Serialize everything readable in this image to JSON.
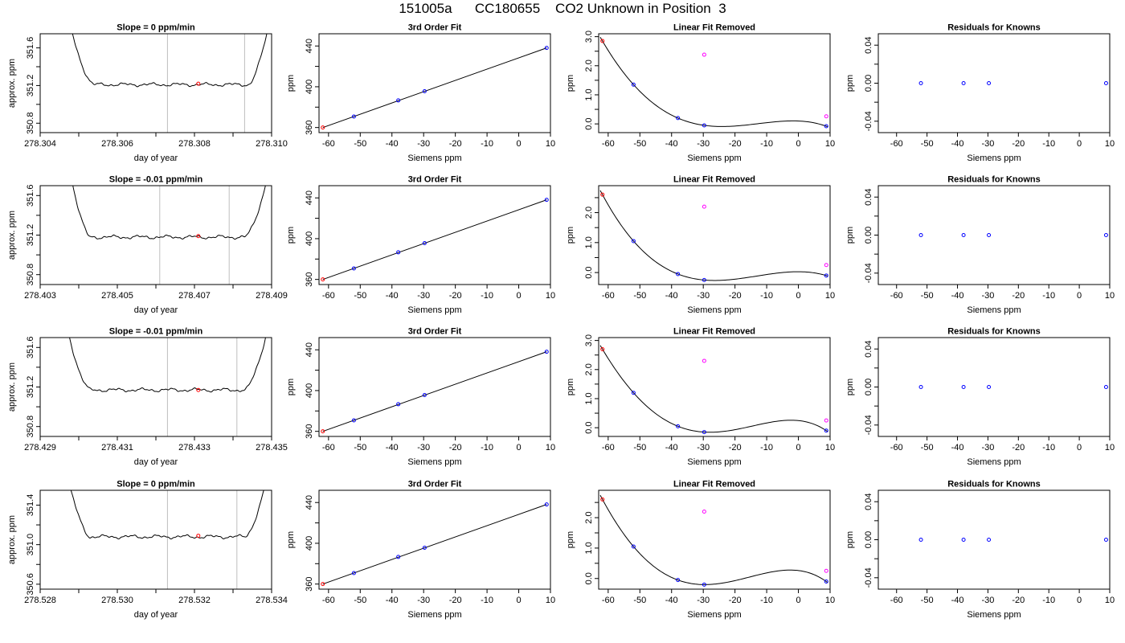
{
  "title": "151005a      CC180655    CO2 Unknown in Position  3",
  "colors": {
    "axis": "#000000",
    "line": "#000000",
    "vline": "#bebebe",
    "red": "#ff0000",
    "blue": "#0000ff",
    "magenta": "#ff00ff"
  },
  "chart_data": [
    {
      "row": 1,
      "col": 1,
      "type": "line",
      "title": "Slope =  0  ppm/min",
      "xlabel": "day of year",
      "ylabel": "approx. ppm",
      "xlim": [
        278.304,
        278.31
      ],
      "ylim": [
        350.7,
        351.75
      ],
      "xticks": [
        278.304,
        278.306,
        278.308,
        278.31
      ],
      "xticklabels": [
        "278.304",
        "278.306",
        "278.308",
        "278.310"
      ],
      "xminor": [
        278.305,
        278.307,
        278.309
      ],
      "yticks": [
        350.8,
        351.2,
        351.6
      ],
      "yticklabels": [
        "350.8",
        "351.2",
        "351.6"
      ],
      "yminor": [
        351.0,
        351.4
      ],
      "trace": {
        "x_start": 278.3048,
        "x_end": 278.3099,
        "flat_start": 278.3054,
        "flat_end": 278.3094,
        "level": 351.21,
        "tail_above": 351.8
      },
      "vlines": [
        278.3073,
        278.3093
      ],
      "marker": {
        "x": 278.3081,
        "y": 351.22
      }
    },
    {
      "row": 1,
      "col": 2,
      "type": "scatter",
      "title": "3rd Order Fit",
      "xlabel": "Siemens ppm",
      "ylabel": "ppm",
      "xlim": [
        -63,
        10
      ],
      "ylim": [
        355,
        452
      ],
      "xticks": [
        -60,
        -50,
        -40,
        -30,
        -20,
        -10,
        0,
        10
      ],
      "yticks": [
        360,
        400,
        440
      ],
      "yticklabels": [
        "360",
        "400",
        "440"
      ],
      "yminor": [
        380,
        420
      ],
      "points": [
        {
          "x": -61.8,
          "y": 360.0,
          "c": "red"
        },
        {
          "x": -52.0,
          "y": 370.8,
          "c": "blue"
        },
        {
          "x": -38.0,
          "y": 386.6,
          "c": "blue"
        },
        {
          "x": -29.7,
          "y": 395.6,
          "c": "blue"
        },
        {
          "x": 8.8,
          "y": 438.1,
          "c": "blue"
        }
      ],
      "fit": {
        "kind": "line"
      }
    },
    {
      "row": 1,
      "col": 3,
      "type": "scatter",
      "title": "Linear Fit Removed",
      "xlabel": "Siemens ppm",
      "ylabel": "ppm",
      "xlim": [
        -63,
        10
      ],
      "ylim": [
        -0.3,
        3.1
      ],
      "xticks": [
        -60,
        -50,
        -40,
        -30,
        -20,
        -10,
        0,
        10
      ],
      "yticks": [
        0.0,
        1.0,
        2.0,
        3.0
      ],
      "yticklabels": [
        "0.0",
        "1.0",
        "2.0",
        "3.0"
      ],
      "yminor": [
        0.5,
        1.5,
        2.5
      ],
      "points": [
        {
          "x": -61.8,
          "y": 2.85,
          "c": "red"
        },
        {
          "x": -52.0,
          "y": 1.35,
          "c": "blue"
        },
        {
          "x": -38.0,
          "y": 0.2,
          "c": "blue"
        },
        {
          "x": -29.7,
          "y": -0.05,
          "c": "blue"
        },
        {
          "x": 8.8,
          "y": -0.08,
          "c": "blue"
        },
        {
          "x": -29.7,
          "y": 2.38,
          "c": "magenta"
        },
        {
          "x": 8.8,
          "y": 0.26,
          "c": "magenta"
        }
      ],
      "fit": {
        "kind": "cubic",
        "x_from": -62.5,
        "x_to": 9.2
      }
    },
    {
      "row": 1,
      "col": 4,
      "type": "scatter",
      "title": "Residuals for Knowns",
      "xlabel": "Siemens ppm",
      "ylabel": "ppm",
      "xlim": [
        -66,
        10
      ],
      "ylim": [
        -0.052,
        0.052
      ],
      "xticks": [
        -60,
        -50,
        -40,
        -30,
        -20,
        -10,
        0,
        10
      ],
      "yticks": [
        -0.04,
        0.0,
        0.04
      ],
      "yticklabels": [
        "-0.04",
        "0.00",
        "0.04"
      ],
      "yminor": [
        -0.02,
        0.02
      ],
      "points": [
        {
          "x": -52.0,
          "y": 0,
          "c": "blue"
        },
        {
          "x": -38.0,
          "y": 0,
          "c": "blue"
        },
        {
          "x": -29.7,
          "y": 0,
          "c": "blue"
        },
        {
          "x": 8.8,
          "y": 0,
          "c": "blue"
        }
      ],
      "fit": null
    },
    {
      "row": 2,
      "col": 1,
      "type": "line",
      "title": "Slope =  -0.01  ppm/min",
      "xlabel": "day of year",
      "ylabel": "approx. ppm",
      "xlim": [
        278.403,
        278.409
      ],
      "ylim": [
        350.7,
        351.7
      ],
      "xticks": [
        278.403,
        278.405,
        278.407,
        278.409
      ],
      "xticklabels": [
        "278.403",
        "278.405",
        "278.407",
        "278.409"
      ],
      "xminor": [
        278.404,
        278.406,
        278.408
      ],
      "yticks": [
        350.8,
        351.2,
        351.6
      ],
      "yticklabels": [
        "350.8",
        "351.2",
        "351.6"
      ],
      "yminor": [
        351.0,
        351.4
      ],
      "trace": {
        "x_start": 278.4038,
        "x_end": 278.4089,
        "flat_start": 278.4043,
        "flat_end": 278.4083,
        "level": 351.18,
        "tail_above": 351.8
      },
      "vlines": [
        278.4061,
        278.4079
      ],
      "marker": {
        "x": 278.4071,
        "y": 351.19
      }
    },
    {
      "row": 2,
      "col": 2,
      "type": "scatter",
      "title": "3rd Order Fit",
      "xlabel": "Siemens ppm",
      "ylabel": "ppm",
      "xlim": [
        -63,
        10
      ],
      "ylim": [
        355,
        452
      ],
      "xticks": [
        -60,
        -50,
        -40,
        -30,
        -20,
        -10,
        0,
        10
      ],
      "yticks": [
        360,
        400,
        440
      ],
      "yticklabels": [
        "360",
        "400",
        "440"
      ],
      "yminor": [
        380,
        420
      ],
      "points": [
        {
          "x": -61.8,
          "y": 360.0,
          "c": "red"
        },
        {
          "x": -52.0,
          "y": 370.8,
          "c": "blue"
        },
        {
          "x": -38.0,
          "y": 386.6,
          "c": "blue"
        },
        {
          "x": -29.7,
          "y": 395.6,
          "c": "blue"
        },
        {
          "x": 8.8,
          "y": 438.1,
          "c": "blue"
        }
      ],
      "fit": {
        "kind": "line"
      }
    },
    {
      "row": 2,
      "col": 3,
      "type": "scatter",
      "title": "Linear Fit Removed",
      "xlabel": "Siemens ppm",
      "ylabel": "ppm",
      "xlim": [
        -63,
        10
      ],
      "ylim": [
        -0.4,
        2.9
      ],
      "xticks": [
        -60,
        -50,
        -40,
        -30,
        -20,
        -10,
        0,
        10
      ],
      "yticks": [
        0.0,
        1.0,
        2.0
      ],
      "yticklabels": [
        "0.0",
        "1.0",
        "2.0"
      ],
      "yminor": [
        0.5,
        1.5,
        2.5
      ],
      "points": [
        {
          "x": -61.8,
          "y": 2.6,
          "c": "red"
        },
        {
          "x": -52.0,
          "y": 1.05,
          "c": "blue"
        },
        {
          "x": -38.0,
          "y": -0.05,
          "c": "blue"
        },
        {
          "x": -29.7,
          "y": -0.25,
          "c": "blue"
        },
        {
          "x": 8.8,
          "y": -0.1,
          "c": "blue"
        },
        {
          "x": -29.7,
          "y": 2.2,
          "c": "magenta"
        },
        {
          "x": 8.8,
          "y": 0.25,
          "c": "magenta"
        }
      ],
      "fit": {
        "kind": "cubic",
        "x_from": -62.5,
        "x_to": 9.2
      }
    },
    {
      "row": 2,
      "col": 4,
      "type": "scatter",
      "title": "Residuals for Knowns",
      "xlabel": "Siemens ppm",
      "ylabel": "ppm",
      "xlim": [
        -66,
        10
      ],
      "ylim": [
        -0.052,
        0.052
      ],
      "xticks": [
        -60,
        -50,
        -40,
        -30,
        -20,
        -10,
        0,
        10
      ],
      "yticks": [
        -0.04,
        0.0,
        0.04
      ],
      "yticklabels": [
        "-0.04",
        "0.00",
        "0.04"
      ],
      "yminor": [
        -0.02,
        0.02
      ],
      "points": [
        {
          "x": -52.0,
          "y": 0,
          "c": "blue"
        },
        {
          "x": -38.0,
          "y": 0,
          "c": "blue"
        },
        {
          "x": -29.7,
          "y": 0,
          "c": "blue"
        },
        {
          "x": 8.8,
          "y": 0,
          "c": "blue"
        }
      ],
      "fit": null
    },
    {
      "row": 3,
      "col": 1,
      "type": "line",
      "title": "Slope =  -0.01  ppm/min",
      "xlabel": "day of year",
      "ylabel": "approx. ppm",
      "xlim": [
        278.429,
        278.435
      ],
      "ylim": [
        350.7,
        351.7
      ],
      "xticks": [
        278.429,
        278.431,
        278.433,
        278.435
      ],
      "xticklabels": [
        "278.429",
        "278.431",
        "278.433",
        "278.435"
      ],
      "xminor": [
        278.43,
        278.432,
        278.434
      ],
      "yticks": [
        350.8,
        351.2,
        351.6
      ],
      "yticklabels": [
        "350.8",
        "351.2",
        "351.6"
      ],
      "yminor": [
        351.0,
        351.4
      ],
      "trace": {
        "x_start": 278.4297,
        "x_end": 278.4349,
        "flat_start": 278.4303,
        "flat_end": 278.4343,
        "level": 351.17,
        "tail_above": 351.8
      },
      "vlines": [
        278.4323,
        278.4341
      ],
      "marker": {
        "x": 278.4331,
        "y": 351.17
      }
    },
    {
      "row": 3,
      "col": 2,
      "type": "scatter",
      "title": "3rd Order Fit",
      "xlabel": "Siemens ppm",
      "ylabel": "ppm",
      "xlim": [
        -63,
        10
      ],
      "ylim": [
        355,
        452
      ],
      "xticks": [
        -60,
        -50,
        -40,
        -30,
        -20,
        -10,
        0,
        10
      ],
      "yticks": [
        360,
        400,
        440
      ],
      "yticklabels": [
        "360",
        "400",
        "440"
      ],
      "yminor": [
        380,
        420
      ],
      "points": [
        {
          "x": -61.8,
          "y": 360.0,
          "c": "red"
        },
        {
          "x": -52.0,
          "y": 370.8,
          "c": "blue"
        },
        {
          "x": -38.0,
          "y": 386.6,
          "c": "blue"
        },
        {
          "x": -29.7,
          "y": 395.6,
          "c": "blue"
        },
        {
          "x": 8.8,
          "y": 438.1,
          "c": "blue"
        }
      ],
      "fit": {
        "kind": "line"
      }
    },
    {
      "row": 3,
      "col": 3,
      "type": "scatter",
      "title": "Linear Fit Removed",
      "xlabel": "Siemens ppm",
      "ylabel": "ppm",
      "xlim": [
        -63,
        10
      ],
      "ylim": [
        -0.3,
        3.1
      ],
      "xticks": [
        -60,
        -50,
        -40,
        -30,
        -20,
        -10,
        0,
        10
      ],
      "yticks": [
        0.0,
        1.0,
        2.0,
        3.0
      ],
      "yticklabels": [
        "0.0",
        "1.0",
        "2.0",
        "3.0"
      ],
      "yminor": [
        0.5,
        1.5,
        2.5
      ],
      "points": [
        {
          "x": -61.8,
          "y": 2.7,
          "c": "red"
        },
        {
          "x": -52.0,
          "y": 1.2,
          "c": "blue"
        },
        {
          "x": -38.0,
          "y": 0.05,
          "c": "blue"
        },
        {
          "x": -29.7,
          "y": -0.15,
          "c": "blue"
        },
        {
          "x": 8.8,
          "y": -0.1,
          "c": "blue"
        },
        {
          "x": -29.7,
          "y": 2.3,
          "c": "magenta"
        },
        {
          "x": 8.8,
          "y": 0.25,
          "c": "magenta"
        }
      ],
      "fit": {
        "kind": "cubic",
        "x_from": -62.5,
        "x_to": 9.2
      }
    },
    {
      "row": 3,
      "col": 4,
      "type": "scatter",
      "title": "Residuals for Knowns",
      "xlabel": "Siemens ppm",
      "ylabel": "ppm",
      "xlim": [
        -66,
        10
      ],
      "ylim": [
        -0.052,
        0.052
      ],
      "xticks": [
        -60,
        -50,
        -40,
        -30,
        -20,
        -10,
        0,
        10
      ],
      "yticks": [
        -0.04,
        0.0,
        0.04
      ],
      "yticklabels": [
        "-0.04",
        "0.00",
        "0.04"
      ],
      "yminor": [
        -0.02,
        0.02
      ],
      "points": [
        {
          "x": -52.0,
          "y": 0,
          "c": "blue"
        },
        {
          "x": -38.0,
          "y": 0,
          "c": "blue"
        },
        {
          "x": -29.7,
          "y": 0,
          "c": "blue"
        },
        {
          "x": 8.8,
          "y": 0,
          "c": "blue"
        }
      ],
      "fit": null
    },
    {
      "row": 4,
      "col": 1,
      "type": "line",
      "title": "Slope =  0  ppm/min",
      "xlabel": "day of year",
      "ylabel": "approx. ppm",
      "xlim": [
        278.528,
        278.534
      ],
      "ylim": [
        350.55,
        351.55
      ],
      "xticks": [
        278.528,
        278.53,
        278.532,
        278.534
      ],
      "xticklabels": [
        "278.528",
        "278.530",
        "278.532",
        "278.534"
      ],
      "xminor": [
        278.529,
        278.531,
        278.533
      ],
      "yticks": [
        350.6,
        351.0,
        351.4
      ],
      "yticklabels": [
        "350.6",
        "351.0",
        "351.4"
      ],
      "yminor": [
        350.8,
        351.2
      ],
      "trace": {
        "x_start": 278.5287,
        "x_end": 278.5339,
        "flat_start": 278.5293,
        "flat_end": 278.5333,
        "level": 351.08,
        "tail_above": 351.7
      },
      "vlines": [
        278.5313,
        278.5331
      ],
      "marker": {
        "x": 278.5321,
        "y": 351.09
      }
    },
    {
      "row": 4,
      "col": 2,
      "type": "scatter",
      "title": "3rd Order Fit",
      "xlabel": "Siemens ppm",
      "ylabel": "ppm",
      "xlim": [
        -63,
        10
      ],
      "ylim": [
        355,
        452
      ],
      "xticks": [
        -60,
        -50,
        -40,
        -30,
        -20,
        -10,
        0,
        10
      ],
      "yticks": [
        360,
        400,
        440
      ],
      "yticklabels": [
        "360",
        "400",
        "440"
      ],
      "yminor": [
        380,
        420
      ],
      "points": [
        {
          "x": -61.8,
          "y": 360.0,
          "c": "red"
        },
        {
          "x": -52.0,
          "y": 370.8,
          "c": "blue"
        },
        {
          "x": -38.0,
          "y": 386.6,
          "c": "blue"
        },
        {
          "x": -29.7,
          "y": 395.6,
          "c": "blue"
        },
        {
          "x": 8.8,
          "y": 438.1,
          "c": "blue"
        }
      ],
      "fit": {
        "kind": "line"
      }
    },
    {
      "row": 4,
      "col": 3,
      "type": "scatter",
      "title": "Linear Fit Removed",
      "xlabel": "Siemens ppm",
      "ylabel": "ppm",
      "xlim": [
        -63,
        10
      ],
      "ylim": [
        -0.35,
        2.9
      ],
      "xticks": [
        -60,
        -50,
        -40,
        -30,
        -20,
        -10,
        0,
        10
      ],
      "yticks": [
        0.0,
        1.0,
        2.0
      ],
      "yticklabels": [
        "0.0",
        "1.0",
        "2.0"
      ],
      "yminor": [
        0.5,
        1.5,
        2.5
      ],
      "points": [
        {
          "x": -61.8,
          "y": 2.6,
          "c": "red"
        },
        {
          "x": -52.0,
          "y": 1.05,
          "c": "blue"
        },
        {
          "x": -38.0,
          "y": -0.05,
          "c": "blue"
        },
        {
          "x": -29.7,
          "y": -0.2,
          "c": "blue"
        },
        {
          "x": 8.8,
          "y": -0.1,
          "c": "blue"
        },
        {
          "x": -29.7,
          "y": 2.2,
          "c": "magenta"
        },
        {
          "x": 8.8,
          "y": 0.25,
          "c": "magenta"
        }
      ],
      "fit": {
        "kind": "cubic",
        "x_from": -62.5,
        "x_to": 9.2
      }
    },
    {
      "row": 4,
      "col": 4,
      "type": "scatter",
      "title": "Residuals for Knowns",
      "xlabel": "Siemens ppm",
      "ylabel": "ppm",
      "xlim": [
        -66,
        10
      ],
      "ylim": [
        -0.052,
        0.052
      ],
      "xticks": [
        -60,
        -50,
        -40,
        -30,
        -20,
        -10,
        0,
        10
      ],
      "yticks": [
        -0.04,
        0.0,
        0.04
      ],
      "yticklabels": [
        "-0.04",
        "0.00",
        "0.04"
      ],
      "yminor": [
        -0.02,
        0.02
      ],
      "points": [
        {
          "x": -52.0,
          "y": 0,
          "c": "blue"
        },
        {
          "x": -38.0,
          "y": 0,
          "c": "blue"
        },
        {
          "x": -29.7,
          "y": 0,
          "c": "blue"
        },
        {
          "x": 8.8,
          "y": 0,
          "c": "blue"
        }
      ],
      "fit": null
    }
  ]
}
